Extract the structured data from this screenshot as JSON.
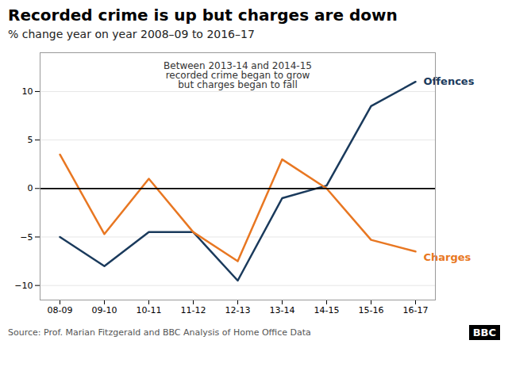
{
  "chart_data": {
    "type": "line",
    "title": "Recorded crime is up but charges are down",
    "subtitle": "% change year on year 2008–09 to 2016–17",
    "categories": [
      "08-09",
      "09-10",
      "10-11",
      "11-12",
      "12-13",
      "13-14",
      "14-15",
      "15-16",
      "16-17"
    ],
    "series": [
      {
        "name": "Offences",
        "color": "#1a3a5c",
        "values": [
          -5.0,
          -8.0,
          -4.5,
          -4.5,
          -9.5,
          -1.0,
          0.3,
          8.5,
          11.0
        ]
      },
      {
        "name": "Charges",
        "color": "#e87722",
        "values": [
          3.5,
          -4.7,
          1.0,
          -4.5,
          -7.5,
          3.0,
          0.0,
          -5.3,
          -6.5
        ]
      }
    ],
    "annotations": [
      "Between 2013-14 and 2014-15\nrecorded crime began to grow\nbut charges began to fall"
    ],
    "source": "Source: Prof. Marian Fitzgerald and BBC Analysis of Home Office Data",
    "logo": "BBC",
    "ylim": [
      -11.5,
      14
    ],
    "yticks": [
      -10,
      -5,
      0,
      5,
      10
    ],
    "grid": true
  }
}
